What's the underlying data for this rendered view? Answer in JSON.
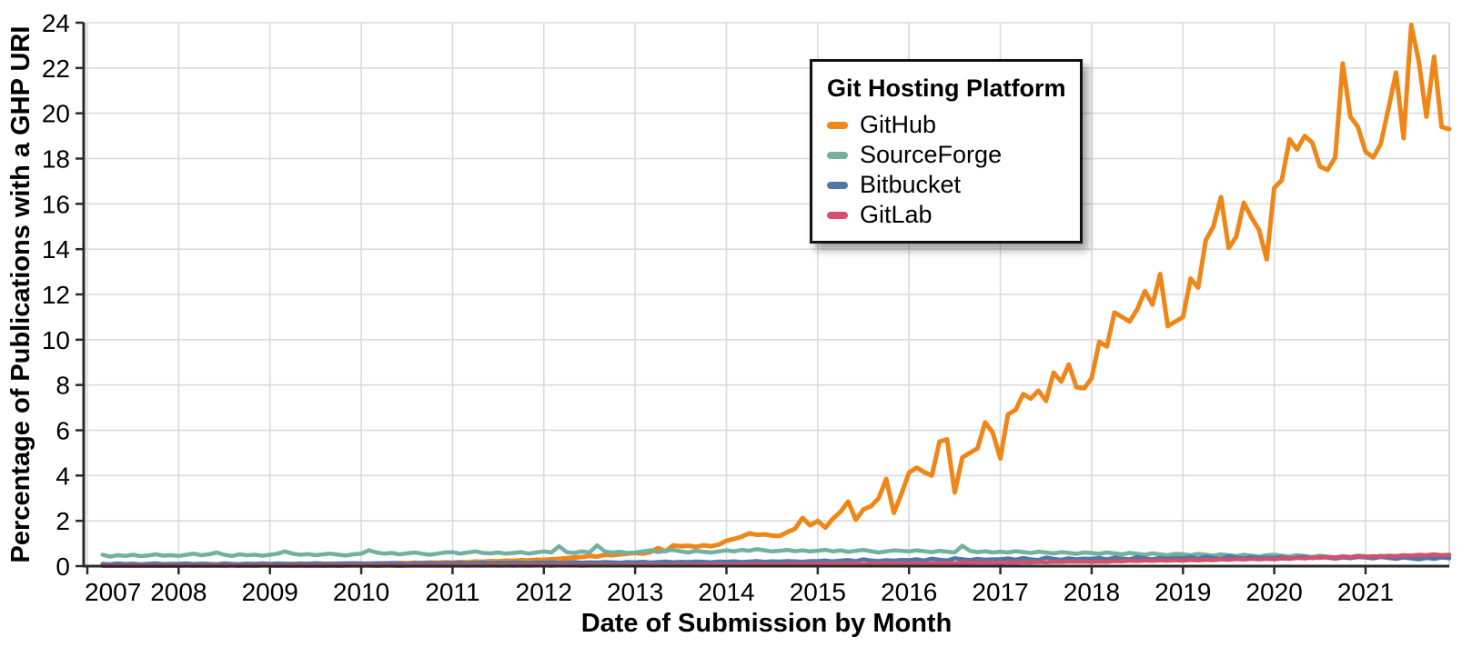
{
  "chart_data": {
    "type": "line",
    "title": "",
    "xlabel": "Date of Submission by Month",
    "ylabel": "Percentage of Publications with a GHP URI",
    "legend_title": "Git Hosting Platform",
    "legend_position": "top-center",
    "grid": true,
    "ylim": [
      0,
      24
    ],
    "y_tick_step": 2,
    "y_tick_labels": [
      "0",
      "2",
      "4",
      "6",
      "8",
      "10",
      "12",
      "14",
      "16",
      "18",
      "20",
      "22",
      "24"
    ],
    "x_tick_labels": [
      "2007",
      "2008",
      "2009",
      "2010",
      "2011",
      "2012",
      "2013",
      "2014",
      "2015",
      "2016",
      "2017",
      "2018",
      "2019",
      "2020",
      "2021"
    ],
    "x_start_year": 2007,
    "x_start_month": 3,
    "x_step_months": 1,
    "colors": {
      "grid": "#DBDBDB",
      "panel_edge": "#D4D4D4",
      "axis": "#2A2A2A",
      "text": "#000000",
      "background": "#FFFFFF",
      "legend_border": "#111111"
    },
    "series": [
      {
        "name": "GitHub",
        "color": "#EE8618",
        "width": 5,
        "values": [
          0.04,
          0.05,
          0.04,
          0.06,
          0.05,
          0.04,
          0.06,
          0.05,
          0.06,
          0.05,
          0.06,
          0.05,
          0.07,
          0.06,
          0.08,
          0.07,
          0.06,
          0.08,
          0.07,
          0.09,
          0.08,
          0.07,
          0.08,
          0.09,
          0.08,
          0.1,
          0.09,
          0.11,
          0.1,
          0.09,
          0.11,
          0.1,
          0.12,
          0.11,
          0.1,
          0.12,
          0.11,
          0.13,
          0.12,
          0.14,
          0.13,
          0.15,
          0.14,
          0.16,
          0.15,
          0.17,
          0.16,
          0.18,
          0.17,
          0.2,
          0.19,
          0.22,
          0.21,
          0.24,
          0.23,
          0.26,
          0.25,
          0.28,
          0.28,
          0.3,
          0.32,
          0.35,
          0.38,
          0.4,
          0.45,
          0.42,
          0.5,
          0.48,
          0.52,
          0.55,
          0.58,
          0.55,
          0.62,
          0.8,
          0.66,
          0.92,
          0.88,
          0.9,
          0.85,
          0.92,
          0.88,
          0.95,
          1.12,
          1.2,
          1.3,
          1.45,
          1.38,
          1.4,
          1.35,
          1.33,
          1.5,
          1.65,
          2.13,
          1.8,
          2.0,
          1.7,
          2.1,
          2.4,
          2.85,
          2.05,
          2.5,
          2.65,
          3.0,
          3.85,
          2.35,
          3.2,
          4.13,
          4.35,
          4.15,
          4.0,
          5.5,
          5.6,
          3.25,
          4.8,
          5.0,
          5.2,
          6.35,
          5.9,
          4.75,
          6.7,
          6.9,
          7.6,
          7.4,
          7.75,
          7.3,
          8.55,
          8.15,
          8.9,
          7.9,
          7.85,
          8.3,
          9.9,
          9.7,
          11.2,
          11.0,
          10.8,
          11.35,
          12.15,
          11.55,
          12.9,
          10.6,
          10.8,
          11.0,
          12.7,
          12.3,
          14.4,
          15.0,
          16.3,
          14.05,
          14.55,
          16.05,
          15.4,
          14.85,
          13.55,
          16.7,
          17.05,
          18.85,
          18.4,
          19.0,
          18.7,
          17.65,
          17.5,
          18.05,
          22.2,
          19.85,
          19.4,
          18.3,
          18.05,
          18.65,
          20.2,
          21.8,
          18.9,
          23.9,
          22.3,
          19.85,
          22.5,
          19.4,
          19.3
        ]
      },
      {
        "name": "SourceForge",
        "color": "#72B1A0",
        "width": 4.5,
        "values": [
          0.5,
          0.42,
          0.48,
          0.45,
          0.5,
          0.44,
          0.47,
          0.52,
          0.46,
          0.48,
          0.45,
          0.5,
          0.55,
          0.48,
          0.52,
          0.6,
          0.5,
          0.45,
          0.52,
          0.48,
          0.5,
          0.46,
          0.5,
          0.55,
          0.65,
          0.55,
          0.5,
          0.53,
          0.48,
          0.52,
          0.55,
          0.5,
          0.47,
          0.52,
          0.55,
          0.7,
          0.6,
          0.55,
          0.58,
          0.52,
          0.56,
          0.6,
          0.55,
          0.5,
          0.55,
          0.6,
          0.62,
          0.55,
          0.6,
          0.65,
          0.58,
          0.56,
          0.6,
          0.55,
          0.58,
          0.62,
          0.55,
          0.6,
          0.65,
          0.6,
          0.88,
          0.62,
          0.58,
          0.65,
          0.6,
          0.92,
          0.65,
          0.6,
          0.63,
          0.58,
          0.6,
          0.65,
          0.7,
          0.62,
          0.68,
          0.72,
          0.65,
          0.6,
          0.68,
          0.63,
          0.6,
          0.65,
          0.7,
          0.65,
          0.72,
          0.68,
          0.75,
          0.7,
          0.65,
          0.68,
          0.72,
          0.66,
          0.7,
          0.65,
          0.68,
          0.72,
          0.65,
          0.7,
          0.63,
          0.68,
          0.72,
          0.66,
          0.6,
          0.65,
          0.7,
          0.68,
          0.65,
          0.7,
          0.66,
          0.62,
          0.68,
          0.64,
          0.6,
          0.9,
          0.68,
          0.62,
          0.66,
          0.6,
          0.64,
          0.6,
          0.66,
          0.62,
          0.58,
          0.64,
          0.6,
          0.56,
          0.62,
          0.58,
          0.54,
          0.6,
          0.58,
          0.54,
          0.6,
          0.56,
          0.52,
          0.58,
          0.54,
          0.5,
          0.56,
          0.52,
          0.48,
          0.54,
          0.52,
          0.48,
          0.54,
          0.5,
          0.46,
          0.52,
          0.48,
          0.44,
          0.5,
          0.46,
          0.42,
          0.48,
          0.5,
          0.46,
          0.42,
          0.48,
          0.44,
          0.4,
          0.46,
          0.42,
          0.38,
          0.44,
          0.4,
          0.46,
          0.44,
          0.4,
          0.46,
          0.42,
          0.38,
          0.44,
          0.4,
          0.36,
          0.42,
          0.38,
          0.44,
          0.4
        ]
      },
      {
        "name": "Bitbucket",
        "color": "#5377A5",
        "width": 4.5,
        "values": [
          0.1,
          0.08,
          0.12,
          0.09,
          0.11,
          0.08,
          0.1,
          0.12,
          0.09,
          0.1,
          0.1,
          0.12,
          0.09,
          0.11,
          0.1,
          0.08,
          0.12,
          0.1,
          0.09,
          0.11,
          0.1,
          0.12,
          0.1,
          0.12,
          0.11,
          0.09,
          0.12,
          0.1,
          0.13,
          0.11,
          0.1,
          0.12,
          0.11,
          0.13,
          0.12,
          0.1,
          0.13,
          0.11,
          0.14,
          0.12,
          0.1,
          0.13,
          0.12,
          0.14,
          0.12,
          0.13,
          0.13,
          0.15,
          0.12,
          0.14,
          0.16,
          0.13,
          0.15,
          0.14,
          0.16,
          0.15,
          0.13,
          0.16,
          0.15,
          0.17,
          0.14,
          0.16,
          0.18,
          0.15,
          0.17,
          0.16,
          0.18,
          0.17,
          0.15,
          0.18,
          0.17,
          0.19,
          0.16,
          0.18,
          0.2,
          0.17,
          0.19,
          0.18,
          0.2,
          0.19,
          0.17,
          0.2,
          0.19,
          0.21,
          0.18,
          0.2,
          0.22,
          0.19,
          0.21,
          0.2,
          0.22,
          0.21,
          0.19,
          0.22,
          0.22,
          0.25,
          0.21,
          0.24,
          0.27,
          0.22,
          0.3,
          0.25,
          0.22,
          0.26,
          0.24,
          0.27,
          0.26,
          0.3,
          0.25,
          0.33,
          0.28,
          0.25,
          0.35,
          0.3,
          0.27,
          0.32,
          0.28,
          0.3,
          0.3,
          0.34,
          0.28,
          0.36,
          0.3,
          0.27,
          0.38,
          0.32,
          0.28,
          0.35,
          0.3,
          0.33,
          0.32,
          0.36,
          0.3,
          0.38,
          0.33,
          0.3,
          0.4,
          0.34,
          0.3,
          0.37,
          0.33,
          0.36,
          0.35,
          0.4,
          0.33,
          0.42,
          0.36,
          0.32,
          0.44,
          0.38,
          0.34,
          0.4,
          0.36,
          0.38,
          0.36,
          0.4,
          0.34,
          0.38,
          0.42,
          0.35,
          0.4,
          0.37,
          0.33,
          0.38,
          0.35,
          0.4,
          0.38,
          0.34,
          0.4,
          0.36,
          0.32,
          0.38,
          0.34,
          0.3,
          0.36,
          0.32,
          0.38,
          0.35
        ]
      },
      {
        "name": "GitLab",
        "color": "#D5506E",
        "width": 4.5,
        "values": [
          0.01,
          0.01,
          0.01,
          0.01,
          0.01,
          0.01,
          0.01,
          0.01,
          0.01,
          0.01,
          0.01,
          0.02,
          0.01,
          0.02,
          0.01,
          0.02,
          0.01,
          0.02,
          0.01,
          0.02,
          0.01,
          0.02,
          0.02,
          0.01,
          0.02,
          0.01,
          0.02,
          0.01,
          0.02,
          0.01,
          0.02,
          0.01,
          0.02,
          0.02,
          0.02,
          0.02,
          0.01,
          0.02,
          0.02,
          0.01,
          0.02,
          0.02,
          0.02,
          0.02,
          0.02,
          0.02,
          0.02,
          0.03,
          0.02,
          0.03,
          0.02,
          0.03,
          0.02,
          0.03,
          0.02,
          0.03,
          0.02,
          0.03,
          0.03,
          0.02,
          0.03,
          0.04,
          0.03,
          0.02,
          0.03,
          0.04,
          0.03,
          0.04,
          0.03,
          0.04,
          0.03,
          0.04,
          0.05,
          0.04,
          0.03,
          0.05,
          0.04,
          0.05,
          0.04,
          0.06,
          0.05,
          0.06,
          0.05,
          0.06,
          0.07,
          0.06,
          0.08,
          0.07,
          0.06,
          0.08,
          0.07,
          0.09,
          0.08,
          0.09,
          0.08,
          0.09,
          0.1,
          0.09,
          0.11,
          0.1,
          0.09,
          0.11,
          0.1,
          0.12,
          0.11,
          0.12,
          0.1,
          0.12,
          0.11,
          0.13,
          0.12,
          0.14,
          0.13,
          0.15,
          0.14,
          0.16,
          0.15,
          0.16,
          0.14,
          0.16,
          0.15,
          0.17,
          0.16,
          0.18,
          0.17,
          0.19,
          0.18,
          0.2,
          0.19,
          0.2,
          0.18,
          0.2,
          0.19,
          0.22,
          0.21,
          0.24,
          0.22,
          0.25,
          0.23,
          0.26,
          0.24,
          0.26,
          0.24,
          0.27,
          0.25,
          0.28,
          0.26,
          0.3,
          0.28,
          0.31,
          0.29,
          0.32,
          0.3,
          0.32,
          0.3,
          0.34,
          0.32,
          0.36,
          0.34,
          0.38,
          0.36,
          0.4,
          0.38,
          0.42,
          0.4,
          0.44,
          0.4,
          0.44,
          0.42,
          0.46,
          0.44,
          0.48,
          0.46,
          0.5,
          0.48,
          0.52,
          0.48,
          0.5
        ]
      }
    ]
  }
}
